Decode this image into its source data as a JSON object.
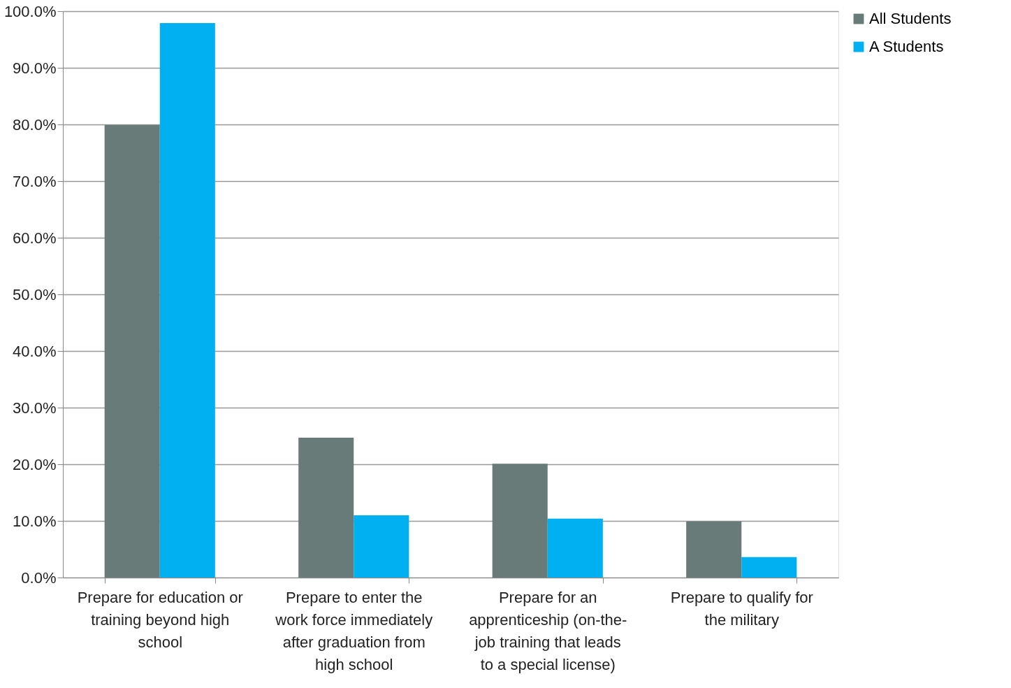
{
  "chart_data": {
    "type": "bar",
    "categories": [
      "Prepare for education or training beyond high school",
      "Prepare to enter the work force immediately after graduation from high school",
      "Prepare for an apprenticeship (on-the-job training that leads to a special license)",
      "Prepare to qualify for the military"
    ],
    "series": [
      {
        "name": "All Students",
        "color": "#687b78",
        "values": [
          79.9,
          24.7,
          20.1,
          9.9
        ]
      },
      {
        "name": "A Students",
        "color": "#00b0f0",
        "values": [
          97.9,
          11.0,
          10.4,
          3.6
        ]
      }
    ],
    "ylim": [
      0,
      100
    ],
    "yticks": [
      {
        "value": 0,
        "label": "0.0%"
      },
      {
        "value": 10,
        "label": "10.0%"
      },
      {
        "value": 20,
        "label": "20.0%"
      },
      {
        "value": 30,
        "label": "30.0%"
      },
      {
        "value": 40,
        "label": "40.0%"
      },
      {
        "value": 50,
        "label": "50.0%"
      },
      {
        "value": 60,
        "label": "60.0%"
      },
      {
        "value": 70,
        "label": "70.0%"
      },
      {
        "value": 80,
        "label": "80.0%"
      },
      {
        "value": 90,
        "label": "90.0%"
      },
      {
        "value": 100,
        "label": "100.0%"
      }
    ],
    "grid": "y",
    "legend": "right"
  }
}
